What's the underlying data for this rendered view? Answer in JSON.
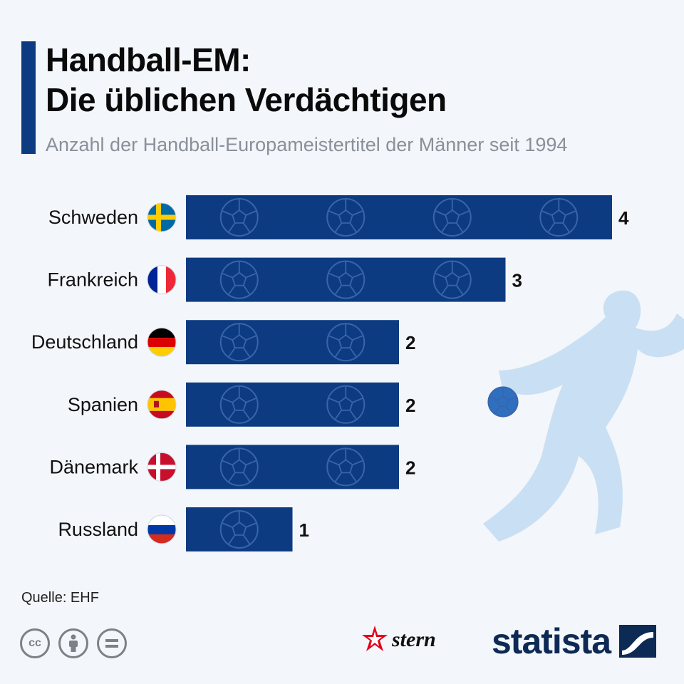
{
  "header": {
    "title_line1": "Handball-EM:",
    "title_line2": "Die üblichen Verdächtigen",
    "subtitle": "Anzahl der Handball-Europameistertitel der Männer seit 1994"
  },
  "chart_data": {
    "type": "bar",
    "orientation": "horizontal",
    "title": "Handball-EM: Die üblichen Verdächtigen",
    "subtitle": "Anzahl der Handball-Europameistertitel der Männer seit 1994",
    "categories": [
      "Schweden",
      "Frankreich",
      "Deutschland",
      "Spanien",
      "Dänemark",
      "Russland"
    ],
    "values": [
      4,
      3,
      2,
      2,
      2,
      1
    ],
    "flags": [
      "sweden",
      "france",
      "germany",
      "spain",
      "denmark",
      "russia"
    ],
    "xlim": [
      0,
      4
    ],
    "bar_color": "#0d3b82",
    "grid": false,
    "legend": "none"
  },
  "footer": {
    "source": "Quelle: EHF",
    "stern_label": "stern",
    "statista_label": "statista"
  },
  "colors": {
    "accent": "#0d3b82",
    "background": "#f3f6fa",
    "silhouette": "#c9dff3"
  }
}
